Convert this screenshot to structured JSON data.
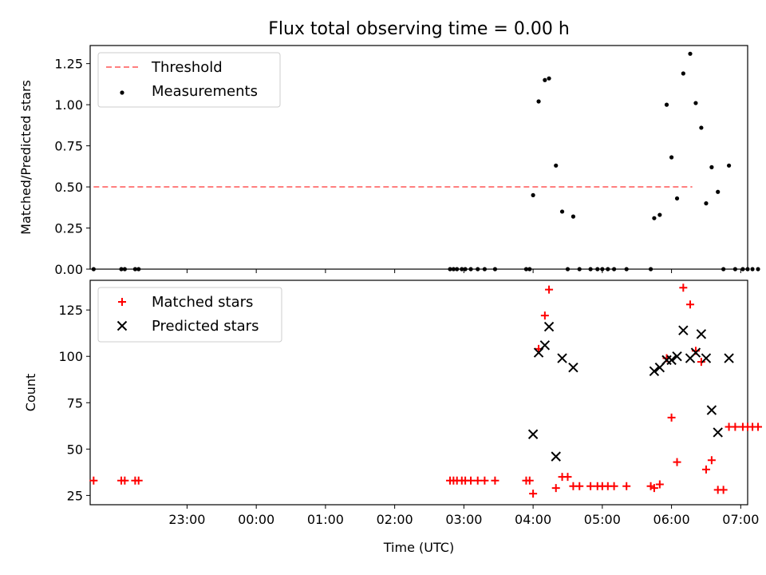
{
  "chart_data": [
    {
      "type": "scatter",
      "title": "Flux total observing time = 0.00 h",
      "xlabel": "",
      "ylabel": "Matched/Predicted stars",
      "xlim": [
        -1.4,
        8.1
      ],
      "ylim": [
        0,
        1.36
      ],
      "yticks": [
        0,
        0.25,
        0.5,
        0.75,
        1.0,
        1.25
      ],
      "yticklabels": [
        "0.00",
        "0.25",
        "0.50",
        "0.75",
        "1.00",
        "1.25"
      ],
      "xticks": [
        0,
        1,
        2,
        3,
        4,
        5,
        6,
        7,
        8
      ],
      "xtick_labels_visible": false,
      "legend_position": "top-left",
      "threshold": {
        "name": "Threshold",
        "y": 0.5,
        "x_range": [
          -1.35,
          7.3
        ],
        "color": "#ff7f7f",
        "style": "dashed"
      },
      "series": [
        {
          "name": "Measurements",
          "color": "#000000",
          "marker": "dot",
          "points": [
            [
              -1.35,
              0
            ],
            [
              -0.95,
              0
            ],
            [
              -0.9,
              0
            ],
            [
              -0.75,
              0
            ],
            [
              -0.7,
              0
            ],
            [
              3.8,
              0
            ],
            [
              3.85,
              0
            ],
            [
              3.9,
              0
            ],
            [
              3.97,
              0
            ],
            [
              4.02,
              0
            ],
            [
              4.1,
              0
            ],
            [
              4.2,
              0
            ],
            [
              4.3,
              0
            ],
            [
              4.45,
              0
            ],
            [
              4.9,
              0
            ],
            [
              4.95,
              0
            ],
            [
              5.0,
              0.45
            ],
            [
              5.08,
              1.02
            ],
            [
              5.17,
              1.15
            ],
            [
              5.23,
              1.16
            ],
            [
              5.33,
              0.63
            ],
            [
              5.42,
              0.35
            ],
            [
              5.58,
              0.32
            ],
            [
              5.5,
              0
            ],
            [
              5.67,
              0
            ],
            [
              5.83,
              0
            ],
            [
              5.93,
              0
            ],
            [
              6.0,
              0
            ],
            [
              6.08,
              0
            ],
            [
              6.17,
              0
            ],
            [
              6.35,
              0
            ],
            [
              6.7,
              0
            ],
            [
              6.75,
              0.31
            ],
            [
              6.83,
              0.33
            ],
            [
              6.93,
              1.0
            ],
            [
              7.0,
              0.68
            ],
            [
              7.08,
              0.43
            ],
            [
              7.17,
              1.19
            ],
            [
              7.27,
              1.31
            ],
            [
              7.35,
              1.01
            ],
            [
              7.43,
              0.86
            ],
            [
              7.5,
              0.4
            ],
            [
              7.58,
              0.62
            ],
            [
              7.67,
              0.47
            ],
            [
              7.83,
              0.63
            ],
            [
              7.75,
              0
            ],
            [
              7.92,
              0
            ],
            [
              8.03,
              0
            ],
            [
              8.1,
              0
            ],
            [
              8.17,
              0
            ],
            [
              8.25,
              0
            ]
          ]
        }
      ]
    },
    {
      "type": "scatter",
      "title": "",
      "xlabel": "Time (UTC)",
      "ylabel": "Count",
      "xlim": [
        -1.4,
        8.1
      ],
      "ylim": [
        20,
        141
      ],
      "yticks": [
        25,
        50,
        75,
        100,
        125
      ],
      "yticklabels": [
        "25",
        "50",
        "75",
        "100",
        "125"
      ],
      "xticks": [
        0,
        1,
        2,
        3,
        4,
        5,
        6,
        7,
        8
      ],
      "xtick_labels": [
        "23:00",
        "00:00",
        "01:00",
        "02:00",
        "03:00",
        "04:00",
        "05:00",
        "06:00",
        "07:00"
      ],
      "legend_position": "top-left",
      "series": [
        {
          "name": "Matched stars",
          "color": "#ff0000",
          "marker": "plus",
          "points": [
            [
              -1.35,
              33
            ],
            [
              -0.95,
              33
            ],
            [
              -0.9,
              33
            ],
            [
              -0.75,
              33
            ],
            [
              -0.7,
              33
            ],
            [
              3.8,
              33
            ],
            [
              3.85,
              33
            ],
            [
              3.9,
              33
            ],
            [
              3.97,
              33
            ],
            [
              4.02,
              33
            ],
            [
              4.1,
              33
            ],
            [
              4.2,
              33
            ],
            [
              4.3,
              33
            ],
            [
              4.45,
              33
            ],
            [
              4.9,
              33
            ],
            [
              4.95,
              33
            ],
            [
              5.0,
              26
            ],
            [
              5.08,
              104
            ],
            [
              5.17,
              122
            ],
            [
              5.23,
              136
            ],
            [
              5.33,
              29
            ],
            [
              5.42,
              35
            ],
            [
              5.5,
              35
            ],
            [
              5.58,
              30
            ],
            [
              5.67,
              30
            ],
            [
              5.83,
              30
            ],
            [
              5.93,
              30
            ],
            [
              6.0,
              30
            ],
            [
              6.08,
              30
            ],
            [
              6.17,
              30
            ],
            [
              6.35,
              30
            ],
            [
              6.7,
              30
            ],
            [
              6.75,
              29
            ],
            [
              6.83,
              31
            ],
            [
              6.93,
              99
            ],
            [
              7.0,
              67
            ],
            [
              7.08,
              43
            ],
            [
              7.17,
              137
            ],
            [
              7.27,
              128
            ],
            [
              7.35,
              103
            ],
            [
              7.43,
              97
            ],
            [
              7.5,
              39
            ],
            [
              7.58,
              44
            ],
            [
              7.67,
              28
            ],
            [
              7.75,
              28
            ],
            [
              7.83,
              62
            ],
            [
              7.92,
              62
            ],
            [
              8.03,
              62
            ],
            [
              8.1,
              62
            ],
            [
              8.17,
              62
            ],
            [
              8.25,
              62
            ]
          ]
        },
        {
          "name": "Predicted stars",
          "color": "#000000",
          "marker": "x",
          "points": [
            [
              5.0,
              58
            ],
            [
              5.08,
              102
            ],
            [
              5.17,
              106
            ],
            [
              5.23,
              116
            ],
            [
              5.33,
              46
            ],
            [
              5.42,
              99
            ],
            [
              5.58,
              94
            ],
            [
              6.75,
              92
            ],
            [
              6.83,
              94
            ],
            [
              6.93,
              98
            ],
            [
              7.0,
              98
            ],
            [
              7.08,
              100
            ],
            [
              7.17,
              114
            ],
            [
              7.27,
              99
            ],
            [
              7.35,
              102
            ],
            [
              7.43,
              112
            ],
            [
              7.5,
              99
            ],
            [
              7.58,
              71
            ],
            [
              7.67,
              59
            ],
            [
              7.83,
              99
            ]
          ]
        }
      ]
    }
  ]
}
